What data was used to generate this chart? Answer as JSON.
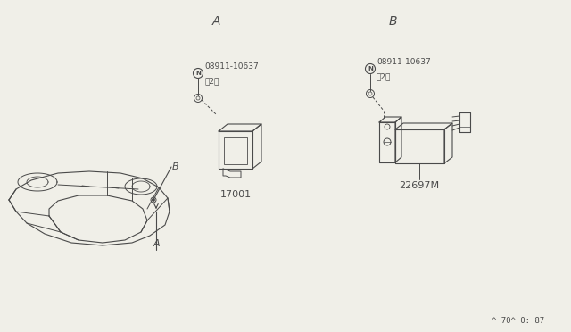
{
  "bg_color": "#f0efe8",
  "line_color": "#4a4a4a",
  "title_a": "A",
  "title_b": "B",
  "part_label_a": "17001",
  "part_label_b": "22697M",
  "bolt_label_1": "ⓝ08911-10637",
  "bolt_label_2": "（2）",
  "footer": "^ 70^ 0: 87",
  "label_a_car": "A",
  "label_b_car": "B",
  "font_size_labels": 8,
  "font_size_title": 10,
  "font_size_footer": 6.5
}
